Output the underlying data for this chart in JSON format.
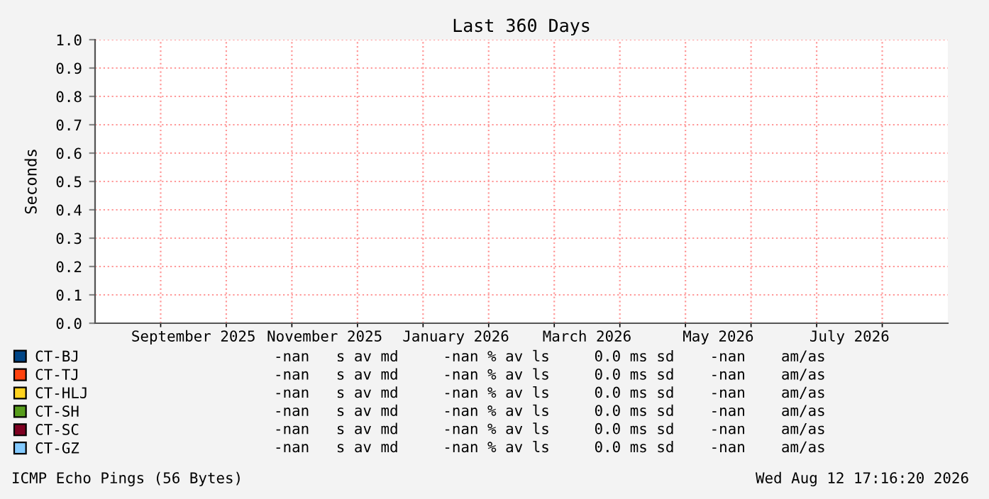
{
  "chart_data": {
    "type": "line",
    "title": "Last 360 Days",
    "ylabel": "Seconds",
    "categories": [
      null,
      "September 2025",
      null,
      "November 2025",
      null,
      "January 2026",
      null,
      "March 2026",
      null,
      "May 2026",
      null,
      "July 2026",
      null
    ],
    "ylim": [
      0,
      1
    ],
    "yticks": [
      {
        "value": 0,
        "label": "0.0"
      },
      {
        "value": 0.1,
        "label": "0.1"
      },
      {
        "value": 0.2,
        "label": "0.2"
      },
      {
        "value": 0.3,
        "label": "0.3"
      },
      {
        "value": 0.4,
        "label": "0.4"
      },
      {
        "value": 0.5,
        "label": "0.5"
      },
      {
        "value": 0.6,
        "label": "0.6"
      },
      {
        "value": 0.7,
        "label": "0.7"
      },
      {
        "value": 0.8,
        "label": "0.8"
      },
      {
        "value": 0.9,
        "label": "0.9"
      },
      {
        "value": 1.0,
        "label": "1.0"
      }
    ],
    "grid": true,
    "legend": "bottom left",
    "series": [
      {
        "name": "CT-BJ",
        "color": "#004586",
        "values": [
          null,
          null,
          null,
          null,
          null,
          null,
          null,
          null,
          null,
          null,
          null,
          null,
          null
        ]
      },
      {
        "name": "CT-TJ",
        "color": "#ff420e",
        "values": [
          null,
          null,
          null,
          null,
          null,
          null,
          null,
          null,
          null,
          null,
          null,
          null,
          null
        ]
      },
      {
        "name": "CT-HLJ",
        "color": "#ffd320",
        "values": [
          null,
          null,
          null,
          null,
          null,
          null,
          null,
          null,
          null,
          null,
          null,
          null,
          null
        ]
      },
      {
        "name": "CT-SH",
        "color": "#579d1c",
        "values": [
          null,
          null,
          null,
          null,
          null,
          null,
          null,
          null,
          null,
          null,
          null,
          null,
          null
        ]
      },
      {
        "name": "CT-SC",
        "color": "#7e0021",
        "values": [
          null,
          null,
          null,
          null,
          null,
          null,
          null,
          null,
          null,
          null,
          null,
          null,
          null
        ]
      },
      {
        "name": "CT-GZ",
        "color": "#83caff",
        "values": [
          null,
          null,
          null,
          null,
          null,
          null,
          null,
          null,
          null,
          null,
          null,
          null,
          null
        ]
      }
    ],
    "annotations": [
      "-nan   s av md     -nan % av ls     0.0 ms sd    -nan    am/as",
      "-nan   s av md     -nan % av ls     0.0 ms sd    -nan    am/as",
      "-nan   s av md     -nan % av ls     0.0 ms sd    -nan    am/as",
      "-nan   s av md     -nan % av ls     0.0 ms sd    -nan    am/as",
      "-nan   s av md     -nan % av ls     0.0 ms sd    -nan    am/as",
      "-nan   s av md     -nan % av ls     0.0 ms sd    -nan    am/as",
      "ICMP Echo Pings (56 Bytes)",
      "Wed Aug 12 17:16:20 2026"
    ]
  }
}
